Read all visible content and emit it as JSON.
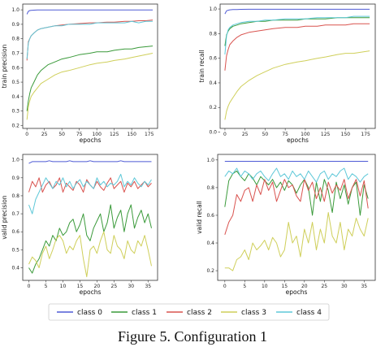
{
  "caption": "Figure 5. Configuration 1",
  "legend": {
    "entries": [
      {
        "label": "class 0",
        "color": "#4f5bd5"
      },
      {
        "label": "class 1",
        "color": "#3a9a3a"
      },
      {
        "label": "class 2",
        "color": "#d9534f"
      },
      {
        "label": "class 3",
        "color": "#cfcf5a"
      },
      {
        "label": "class 4",
        "color": "#5ec8d8"
      }
    ]
  },
  "chart_data": [
    {
      "type": "line",
      "xlabel": "epochs",
      "ylabel": "train precision",
      "xlim": [
        -6,
        187
      ],
      "ylim": [
        0.18,
        1.04
      ],
      "xticks": [
        0,
        25,
        50,
        75,
        100,
        125,
        150,
        175
      ],
      "yticks": [
        0.2,
        0.3,
        0.4,
        0.5,
        0.6,
        0.7,
        0.8,
        0.9,
        1.0
      ],
      "x": [
        0,
        2,
        4,
        6,
        10,
        15,
        20,
        30,
        40,
        50,
        60,
        75,
        90,
        100,
        115,
        125,
        140,
        150,
        160,
        170,
        180
      ],
      "series": [
        {
          "name": "class 0",
          "values": [
            0.97,
            0.99,
            0.995,
            0.997,
            0.998,
            0.999,
            0.999,
            0.999,
            0.999,
            0.999,
            0.999,
            0.999,
            0.999,
            0.999,
            0.999,
            0.999,
            0.999,
            0.999,
            0.999,
            0.999,
            0.999
          ]
        },
        {
          "name": "class 1",
          "values": [
            0.3,
            0.37,
            0.42,
            0.46,
            0.5,
            0.55,
            0.58,
            0.62,
            0.64,
            0.66,
            0.67,
            0.69,
            0.7,
            0.71,
            0.71,
            0.72,
            0.73,
            0.73,
            0.74,
            0.745,
            0.75
          ]
        },
        {
          "name": "class 2",
          "values": [
            0.65,
            0.78,
            0.8,
            0.82,
            0.84,
            0.86,
            0.87,
            0.88,
            0.89,
            0.895,
            0.9,
            0.905,
            0.91,
            0.91,
            0.915,
            0.915,
            0.92,
            0.92,
            0.925,
            0.925,
            0.93
          ]
        },
        {
          "name": "class 3",
          "values": [
            0.24,
            0.33,
            0.37,
            0.4,
            0.43,
            0.46,
            0.49,
            0.52,
            0.55,
            0.57,
            0.58,
            0.6,
            0.62,
            0.63,
            0.64,
            0.65,
            0.66,
            0.67,
            0.68,
            0.69,
            0.7
          ]
        },
        {
          "name": "class 4",
          "values": [
            0.66,
            0.77,
            0.8,
            0.82,
            0.84,
            0.86,
            0.87,
            0.88,
            0.89,
            0.89,
            0.9,
            0.9,
            0.9,
            0.91,
            0.91,
            0.91,
            0.91,
            0.92,
            0.91,
            0.92,
            0.92
          ]
        }
      ]
    },
    {
      "type": "line",
      "xlabel": "epochs",
      "ylabel": "train recall",
      "xlim": [
        -6,
        187
      ],
      "ylim": [
        0.03,
        1.04
      ],
      "xticks": [
        0,
        25,
        50,
        75,
        100,
        125,
        150,
        175
      ],
      "yticks": [
        0.0,
        0.2,
        0.4,
        0.6,
        0.8,
        1.0
      ],
      "x": [
        0,
        2,
        4,
        6,
        10,
        15,
        20,
        30,
        40,
        50,
        60,
        75,
        90,
        100,
        115,
        125,
        140,
        150,
        160,
        170,
        180
      ],
      "series": [
        {
          "name": "class 0",
          "values": [
            0.96,
            0.985,
            0.99,
            0.993,
            0.995,
            0.996,
            0.997,
            0.998,
            0.998,
            0.998,
            0.998,
            0.998,
            0.998,
            0.998,
            0.998,
            0.998,
            0.998,
            0.998,
            0.998,
            0.998,
            0.998
          ]
        },
        {
          "name": "class 1",
          "values": [
            0.7,
            0.79,
            0.82,
            0.84,
            0.86,
            0.87,
            0.88,
            0.89,
            0.9,
            0.9,
            0.91,
            0.91,
            0.91,
            0.92,
            0.92,
            0.92,
            0.93,
            0.93,
            0.93,
            0.93,
            0.93
          ]
        },
        {
          "name": "class 2",
          "values": [
            0.5,
            0.62,
            0.67,
            0.71,
            0.74,
            0.77,
            0.79,
            0.81,
            0.82,
            0.83,
            0.84,
            0.85,
            0.85,
            0.86,
            0.86,
            0.87,
            0.87,
            0.87,
            0.88,
            0.88,
            0.88
          ]
        },
        {
          "name": "class 3",
          "values": [
            0.1,
            0.17,
            0.21,
            0.24,
            0.28,
            0.33,
            0.37,
            0.42,
            0.46,
            0.49,
            0.52,
            0.55,
            0.57,
            0.58,
            0.6,
            0.61,
            0.63,
            0.64,
            0.64,
            0.65,
            0.66
          ]
        },
        {
          "name": "class 4",
          "values": [
            0.63,
            0.78,
            0.83,
            0.85,
            0.87,
            0.88,
            0.89,
            0.9,
            0.9,
            0.91,
            0.91,
            0.92,
            0.92,
            0.92,
            0.93,
            0.93,
            0.93,
            0.93,
            0.94,
            0.94,
            0.94
          ]
        }
      ]
    },
    {
      "type": "line",
      "xlabel": "epochs",
      "ylabel": "valid precision",
      "xlim": [
        -1.8,
        37.8
      ],
      "ylim": [
        0.33,
        1.03
      ],
      "xticks": [
        0,
        5,
        10,
        15,
        20,
        25,
        30,
        35
      ],
      "yticks": [
        0.4,
        0.5,
        0.6,
        0.7,
        0.8,
        0.9,
        1.0
      ],
      "x": [
        0,
        1,
        2,
        3,
        4,
        5,
        6,
        7,
        8,
        9,
        10,
        11,
        12,
        13,
        14,
        15,
        16,
        17,
        18,
        19,
        20,
        21,
        22,
        23,
        24,
        25,
        26,
        27,
        28,
        29,
        30,
        31,
        32,
        33,
        34,
        35,
        36
      ],
      "series": [
        {
          "name": "class 0",
          "values": [
            0.98,
            0.99,
            0.99,
            0.99,
            0.99,
            0.99,
            0.995,
            0.99,
            0.99,
            0.99,
            0.99,
            0.99,
            0.995,
            0.99,
            0.99,
            0.99,
            0.99,
            0.99,
            0.995,
            0.99,
            0.99,
            0.99,
            0.99,
            0.99,
            0.99,
            0.99,
            0.99,
            0.995,
            0.99,
            0.99,
            0.99,
            0.99,
            0.99,
            0.99,
            0.99,
            0.99,
            0.99
          ]
        },
        {
          "name": "class 1",
          "values": [
            0.4,
            0.37,
            0.42,
            0.45,
            0.5,
            0.55,
            0.52,
            0.58,
            0.55,
            0.62,
            0.58,
            0.6,
            0.65,
            0.67,
            0.6,
            0.64,
            0.7,
            0.58,
            0.55,
            0.62,
            0.66,
            0.7,
            0.6,
            0.65,
            0.75,
            0.62,
            0.68,
            0.72,
            0.6,
            0.7,
            0.75,
            0.62,
            0.68,
            0.72,
            0.65,
            0.7,
            0.62
          ]
        },
        {
          "name": "class 2",
          "values": [
            0.82,
            0.88,
            0.85,
            0.9,
            0.82,
            0.86,
            0.88,
            0.84,
            0.86,
            0.9,
            0.82,
            0.87,
            0.85,
            0.83,
            0.88,
            0.86,
            0.82,
            0.89,
            0.86,
            0.84,
            0.88,
            0.85,
            0.83,
            0.87,
            0.9,
            0.84,
            0.86,
            0.88,
            0.82,
            0.87,
            0.85,
            0.88,
            0.84,
            0.86,
            0.88,
            0.85,
            0.87
          ]
        },
        {
          "name": "class 3",
          "values": [
            0.42,
            0.46,
            0.44,
            0.4,
            0.48,
            0.52,
            0.45,
            0.5,
            0.56,
            0.58,
            0.55,
            0.48,
            0.52,
            0.5,
            0.55,
            0.58,
            0.45,
            0.35,
            0.5,
            0.52,
            0.48,
            0.55,
            0.6,
            0.5,
            0.48,
            0.58,
            0.52,
            0.5,
            0.45,
            0.55,
            0.5,
            0.48,
            0.55,
            0.52,
            0.58,
            0.5,
            0.41
          ]
        },
        {
          "name": "class 4",
          "values": [
            0.75,
            0.7,
            0.78,
            0.82,
            0.86,
            0.9,
            0.87,
            0.84,
            0.88,
            0.86,
            0.9,
            0.85,
            0.88,
            0.84,
            0.87,
            0.89,
            0.85,
            0.88,
            0.86,
            0.84,
            0.9,
            0.86,
            0.88,
            0.85,
            0.87,
            0.86,
            0.88,
            0.92,
            0.85,
            0.88,
            0.86,
            0.9,
            0.87,
            0.85,
            0.88,
            0.86,
            0.89
          ]
        }
      ]
    },
    {
      "type": "line",
      "xlabel": "epochs",
      "ylabel": "valid recall",
      "xlim": [
        -1.8,
        37.8
      ],
      "ylim": [
        0.13,
        1.04
      ],
      "xticks": [
        0,
        5,
        10,
        15,
        20,
        25,
        30,
        35
      ],
      "yticks": [
        0.2,
        0.4,
        0.6,
        0.8,
        1.0
      ],
      "x": [
        0,
        1,
        2,
        3,
        4,
        5,
        6,
        7,
        8,
        9,
        10,
        11,
        12,
        13,
        14,
        15,
        16,
        17,
        18,
        19,
        20,
        21,
        22,
        23,
        24,
        25,
        26,
        27,
        28,
        29,
        30,
        31,
        32,
        33,
        34,
        35,
        36
      ],
      "series": [
        {
          "name": "class 0",
          "values": [
            0.99,
            0.99,
            0.99,
            0.99,
            0.99,
            0.99,
            0.99,
            0.99,
            0.99,
            0.99,
            0.99,
            0.99,
            0.99,
            0.99,
            0.99,
            0.99,
            0.99,
            0.99,
            0.99,
            0.99,
            0.99,
            0.99,
            0.99,
            0.99,
            0.99,
            0.99,
            0.99,
            0.99,
            0.99,
            0.99,
            0.99,
            0.99,
            0.99,
            0.99,
            0.99,
            0.99,
            0.99
          ]
        },
        {
          "name": "class 1",
          "values": [
            0.66,
            0.85,
            0.9,
            0.92,
            0.88,
            0.85,
            0.9,
            0.87,
            0.82,
            0.88,
            0.85,
            0.82,
            0.86,
            0.8,
            0.84,
            0.78,
            0.85,
            0.82,
            0.76,
            0.82,
            0.86,
            0.8,
            0.6,
            0.84,
            0.7,
            0.86,
            0.78,
            0.62,
            0.84,
            0.72,
            0.82,
            0.68,
            0.8,
            0.84,
            0.6,
            0.82,
            0.72
          ]
        },
        {
          "name": "class 2",
          "values": [
            0.46,
            0.55,
            0.6,
            0.75,
            0.7,
            0.78,
            0.8,
            0.7,
            0.82,
            0.75,
            0.86,
            0.78,
            0.84,
            0.7,
            0.78,
            0.86,
            0.8,
            0.82,
            0.74,
            0.7,
            0.86,
            0.78,
            0.84,
            0.72,
            0.8,
            0.7,
            0.84,
            0.76,
            0.82,
            0.78,
            0.86,
            0.72,
            0.8,
            0.86,
            0.74,
            0.85,
            0.65
          ]
        },
        {
          "name": "class 3",
          "values": [
            0.22,
            0.22,
            0.2,
            0.28,
            0.3,
            0.35,
            0.28,
            0.4,
            0.35,
            0.38,
            0.42,
            0.35,
            0.44,
            0.4,
            0.3,
            0.35,
            0.55,
            0.4,
            0.45,
            0.3,
            0.5,
            0.4,
            0.55,
            0.35,
            0.5,
            0.4,
            0.62,
            0.45,
            0.4,
            0.55,
            0.35,
            0.5,
            0.45,
            0.58,
            0.5,
            0.45,
            0.58
          ]
        },
        {
          "name": "class 4",
          "values": [
            0.88,
            0.92,
            0.9,
            0.94,
            0.88,
            0.92,
            0.9,
            0.86,
            0.9,
            0.92,
            0.88,
            0.85,
            0.9,
            0.94,
            0.88,
            0.9,
            0.86,
            0.92,
            0.88,
            0.9,
            0.86,
            0.92,
            0.88,
            0.84,
            0.9,
            0.92,
            0.86,
            0.9,
            0.88,
            0.92,
            0.94,
            0.86,
            0.9,
            0.88,
            0.84,
            0.88,
            0.9
          ]
        }
      ]
    }
  ]
}
